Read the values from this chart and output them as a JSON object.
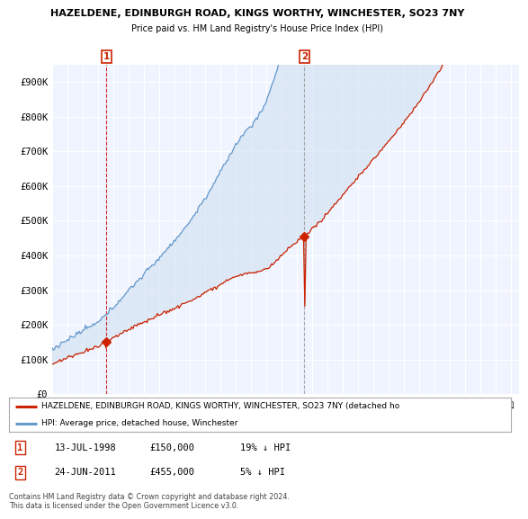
{
  "title_line1": "HAZELDENE, EDINBURGH ROAD, KINGS WORTHY, WINCHESTER, SO23 7NY",
  "title_line2": "Price paid vs. HM Land Registry's House Price Index (HPI)",
  "ylim": [
    0,
    950000
  ],
  "yticks": [
    0,
    100000,
    200000,
    300000,
    400000,
    500000,
    600000,
    700000,
    800000,
    900000
  ],
  "ytick_labels": [
    "£0",
    "£100K",
    "£200K",
    "£300K",
    "£400K",
    "£500K",
    "£600K",
    "£700K",
    "£800K",
    "£900K"
  ],
  "transactions": [
    {
      "date": 1998.54,
      "price": 150000,
      "label": "1",
      "vline_color": "#cc0000",
      "vline_style": "--"
    },
    {
      "date": 2011.48,
      "price": 455000,
      "label": "2",
      "vline_color": "#999999",
      "vline_style": "--"
    }
  ],
  "legend_red": "HAZELDENE, EDINBURGH ROAD, KINGS WORTHY, WINCHESTER, SO23 7NY (detached ho",
  "legend_blue": "HPI: Average price, detached house, Winchester",
  "table_rows": [
    {
      "num": "1",
      "date": "13-JUL-1998",
      "price": "£150,000",
      "hpi": "19% ↓ HPI"
    },
    {
      "num": "2",
      "date": "24-JUN-2011",
      "price": "£455,000",
      "hpi": "5% ↓ HPI"
    }
  ],
  "footer": "Contains HM Land Registry data © Crown copyright and database right 2024.\nThis data is licensed under the Open Government Licence v3.0.",
  "bg_color": "#ffffff",
  "plot_bg_color": "#f0f4ff",
  "grid_color": "#ffffff",
  "red_color": "#cc2200",
  "blue_color": "#6699cc",
  "fill_color": "#d0e0f0"
}
